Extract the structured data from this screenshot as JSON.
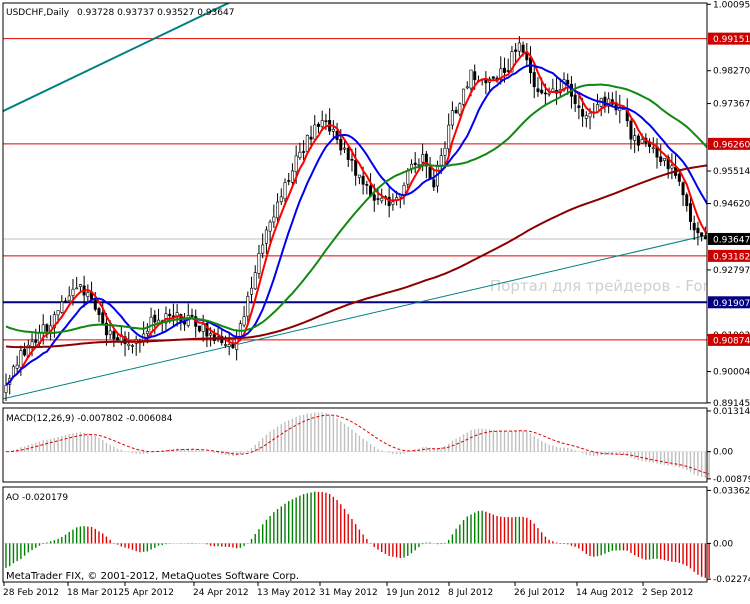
{
  "header": {
    "symbol_tf": "USDCHF,Daily",
    "ohlc": "0.93728 0.93737 0.93527 0.93647"
  },
  "watermark": "Портал для трейдеров - ForTrader.ru",
  "footer": "MetaTrader FIX, © 2001-2012, MetaQuotes Software Corp.",
  "chart_data": [
    {
      "type": "candlestick",
      "title": "USDCHF,Daily",
      "ylim": [
        0.8914,
        1.0013
      ],
      "y_ticks": [
        1.00095,
        0.99151,
        0.9827,
        0.97367,
        0.9626,
        0.95514,
        0.9462,
        0.93647,
        0.93182,
        0.92797,
        0.91907,
        0.91003,
        0.90874,
        0.90004,
        0.89145
      ],
      "price_labels": [
        {
          "value": 0.99151,
          "color": "#cc0000"
        },
        {
          "value": 0.9626,
          "color": "#cc0000"
        },
        {
          "value": 0.93647,
          "color": "#000000"
        },
        {
          "value": 0.93182,
          "color": "#cc0000"
        },
        {
          "value": 0.91907,
          "color": "#000080"
        },
        {
          "value": 0.90874,
          "color": "#cc0000"
        }
      ],
      "hlines": [
        {
          "value": 0.99151,
          "color": "#e00000"
        },
        {
          "value": 0.9626,
          "color": "#e00000"
        },
        {
          "value": 0.93647,
          "color": "#c0c0c0"
        },
        {
          "value": 0.93182,
          "color": "#e00000"
        },
        {
          "value": 0.91907,
          "color": "#000080"
        },
        {
          "value": 0.90874,
          "color": "#e00000"
        }
      ],
      "x_labels": [
        "28 Feb 2012",
        "18 Mar 2012",
        "5 Apr 2012",
        "24 Apr 2012",
        "13 May 2012",
        "31 May 2012",
        "19 Jun 2012",
        "8 Jul 2012",
        "26 Jul 2012",
        "14 Aug 2012",
        "2 Sep 2012"
      ],
      "price_keypoints": [
        [
          0,
          0.8975
        ],
        [
          6,
          0.9075
        ],
        [
          12,
          0.9135
        ],
        [
          18,
          0.9215
        ],
        [
          22,
          0.923
        ],
        [
          28,
          0.9095
        ],
        [
          35,
          0.908
        ],
        [
          40,
          0.915
        ],
        [
          45,
          0.9158
        ],
        [
          52,
          0.9125
        ],
        [
          58,
          0.9075
        ],
        [
          62,
          0.9085
        ],
        [
          68,
          0.932
        ],
        [
          75,
          0.952
        ],
        [
          80,
          0.962
        ],
        [
          85,
          0.97
        ],
        [
          90,
          0.9625
        ],
        [
          95,
          0.953
        ],
        [
          100,
          0.9465
        ],
        [
          105,
          0.947
        ],
        [
          108,
          0.9545
        ],
        [
          112,
          0.958
        ],
        [
          115,
          0.951
        ],
        [
          120,
          0.97
        ],
        [
          125,
          0.982
        ],
        [
          130,
          0.98
        ],
        [
          135,
          0.9835
        ],
        [
          138,
          0.992
        ],
        [
          142,
          0.98
        ],
        [
          145,
          0.976
        ],
        [
          150,
          0.979
        ],
        [
          155,
          0.971
        ],
        [
          160,
          0.974
        ],
        [
          165,
          0.9735
        ],
        [
          168,
          0.9645
        ],
        [
          172,
          0.962
        ],
        [
          176,
          0.959
        ],
        [
          180,
          0.954
        ],
        [
          183,
          0.9445
        ],
        [
          186,
          0.9385
        ],
        [
          188,
          0.9365
        ]
      ],
      "ma_colors": {
        "ma_fast": "#ff0000",
        "ma_mid": "#0000ee",
        "ma_slow": "#118811",
        "ma_long": "#8b0000"
      },
      "trendlines": [
        {
          "name": "channel-upper",
          "color": "#008080",
          "points": [
            [
              -1,
              0.9715
            ],
            [
              148,
              1.0445
            ]
          ]
        },
        {
          "name": "channel-lower",
          "color": "#008080",
          "points": [
            [
              -1,
              0.8925
            ],
            [
              204,
              0.9412
            ]
          ]
        }
      ]
    },
    {
      "type": "bar",
      "title": "MACD(12,26,9) -0.007802 -0.006084",
      "ylim": [
        -0.0098,
        0.0141
      ],
      "y_ticks": [
        0.013143,
        0.0,
        -0.00879
      ],
      "bar_color": "#bfbfbf",
      "signal_color": "#e00000"
    },
    {
      "type": "bar",
      "title": "AO -0.020179",
      "ylim": [
        -0.0245,
        0.0358
      ],
      "y_ticks": [
        0.033627,
        0.0,
        -0.02274
      ],
      "up_color": "#008000",
      "down_color": "#e00000"
    }
  ]
}
